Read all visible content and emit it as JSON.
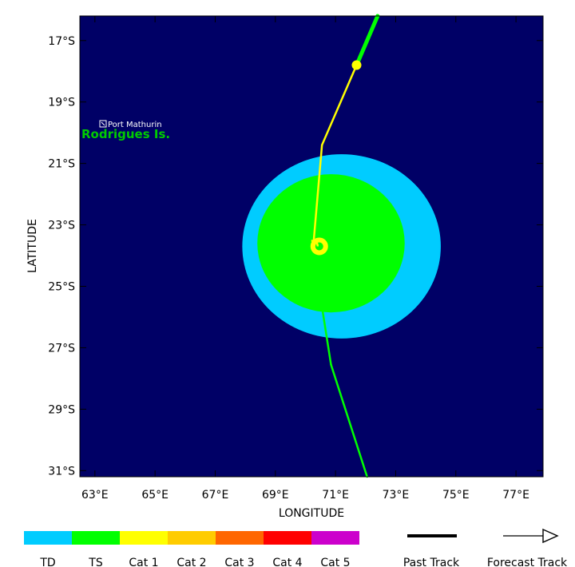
{
  "axes": {
    "xlabel": "LONGITUDE",
    "ylabel": "LATITUDE",
    "xlim": [
      62.5,
      77.9
    ],
    "ylim": [
      -31.2,
      -16.2
    ],
    "x_ticks": [
      {
        "value": 63,
        "label": "63°E"
      },
      {
        "value": 65,
        "label": "65°E"
      },
      {
        "value": 67,
        "label": "67°E"
      },
      {
        "value": 69,
        "label": "69°E"
      },
      {
        "value": 71,
        "label": "71°E"
      },
      {
        "value": 73,
        "label": "73°E"
      },
      {
        "value": 75,
        "label": "75°E"
      },
      {
        "value": 77,
        "label": "77°E"
      }
    ],
    "y_ticks": [
      {
        "value": -17,
        "label": "17°S"
      },
      {
        "value": -19,
        "label": "19°S"
      },
      {
        "value": -21,
        "label": "21°S"
      },
      {
        "value": -23,
        "label": "23°S"
      },
      {
        "value": -25,
        "label": "25°S"
      },
      {
        "value": -27,
        "label": "27°S"
      },
      {
        "value": -29,
        "label": "29°S"
      },
      {
        "value": -31,
        "label": "31°S"
      }
    ]
  },
  "colors": {
    "ocean": "#000066",
    "TD": "#00ccff",
    "TS": "#00ff00",
    "Cat 1": "#ffff00",
    "Cat 2": "#ffcc00",
    "Cat 3": "#ff6600",
    "Cat 4": "#ff0000",
    "Cat 5": "#cc00cc"
  },
  "places": {
    "port": "Port Mathurin",
    "island": "Rodrigues Is."
  },
  "wind_field": {
    "TD": {
      "center_lon": 71.2,
      "center_lat": -23.7,
      "radius_lon": 3.3,
      "radius_lat": 3.0
    },
    "TS": {
      "center_lon": 70.85,
      "center_lat": -23.6,
      "radius_lon": 2.45,
      "radius_lat": 2.25
    }
  },
  "storm_center": {
    "lon": 70.3,
    "lat": -23.7
  },
  "track": [
    {
      "lon": 72.4,
      "lat": -16.2,
      "category": "TS"
    },
    {
      "lon": 71.7,
      "lat": -17.8,
      "category": "Cat 1"
    },
    {
      "lon": 70.55,
      "lat": -20.4,
      "category": "Cat 1"
    },
    {
      "lon": 70.25,
      "lat": -23.8,
      "category": "Cat 1"
    },
    {
      "lon": 70.85,
      "lat": -27.55,
      "category": "TS"
    },
    {
      "lon": 72.05,
      "lat": -31.2,
      "category": "TS"
    }
  ],
  "legend": {
    "categories": [
      "TD",
      "TS",
      "Cat 1",
      "Cat 2",
      "Cat 3",
      "Cat 4",
      "Cat 5"
    ],
    "past_track": "Past Track",
    "forecast_track": "Forecast Track"
  }
}
